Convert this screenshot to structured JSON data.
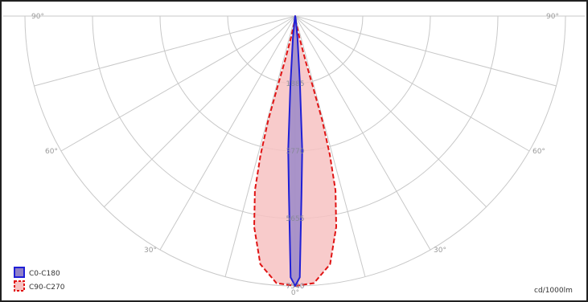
{
  "chart_data": {
    "type": "polar",
    "unit_label": "cd/1000lm",
    "angle_labels": [
      {
        "deg": 90,
        "side": "left",
        "text": "90°"
      },
      {
        "deg": 90,
        "side": "right",
        "text": "90°"
      },
      {
        "deg": 60,
        "side": "left",
        "text": "60°"
      },
      {
        "deg": 60,
        "side": "right",
        "text": "60°"
      },
      {
        "deg": 30,
        "side": "left",
        "text": "30°"
      },
      {
        "deg": 30,
        "side": "right",
        "text": "30°"
      },
      {
        "deg": 0,
        "side": "center",
        "text": "0°"
      }
    ],
    "ring_labels": [
      "1885",
      "3770",
      "5655",
      "7540"
    ],
    "radial_max": 7540,
    "series": [
      {
        "name": "C0-C180",
        "color": "#1f1fd6",
        "fill": "#8f80c8",
        "dash": false,
        "points": [
          {
            "angle": 0,
            "value": 7540
          },
          {
            "angle": 1,
            "value": 7300
          },
          {
            "angle": 2,
            "value": 5000
          },
          {
            "angle": 3,
            "value": 3750
          },
          {
            "angle": 4,
            "value": 1900
          },
          {
            "angle": 6,
            "value": 600
          },
          {
            "angle": 12,
            "value": 40
          },
          {
            "angle": 90,
            "value": 0
          }
        ]
      },
      {
        "name": "C90-C270",
        "color": "#e01414",
        "fill": "#f7c2c2",
        "dash": true,
        "points": [
          {
            "angle": 0,
            "value": 7540
          },
          {
            "angle": 4,
            "value": 7480
          },
          {
            "angle": 8,
            "value": 7000
          },
          {
            "angle": 11,
            "value": 6000
          },
          {
            "angle": 13,
            "value": 5000
          },
          {
            "angle": 14,
            "value": 4000
          },
          {
            "angle": 14.5,
            "value": 3000
          },
          {
            "angle": 14,
            "value": 2000
          },
          {
            "angle": 13,
            "value": 1300
          },
          {
            "angle": 11,
            "value": 600
          },
          {
            "angle": 8,
            "value": 200
          },
          {
            "angle": 90,
            "value": 0
          }
        ]
      }
    ]
  }
}
